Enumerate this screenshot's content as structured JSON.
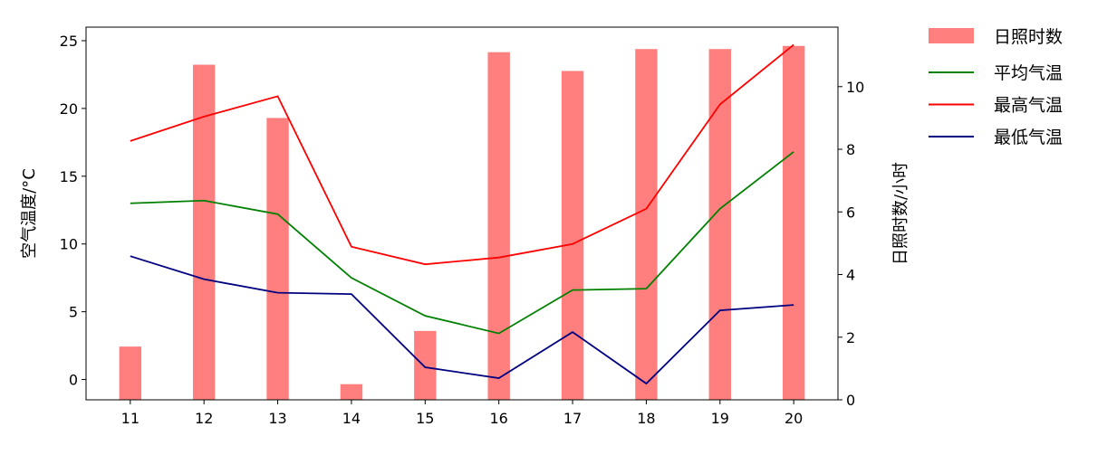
{
  "chart_data": {
    "type": "bar+line",
    "categories": [
      "11",
      "12",
      "13",
      "14",
      "15",
      "16",
      "17",
      "18",
      "19",
      "20"
    ],
    "x": [
      11,
      12,
      13,
      14,
      15,
      16,
      17,
      18,
      19,
      20
    ],
    "xlim": [
      10.4,
      20.6
    ],
    "ylabel": "空气温度/°C",
    "ylim": [
      -1.5,
      26
    ],
    "yticks": [
      0,
      5,
      10,
      15,
      20,
      25
    ],
    "y2label": "日照时数/小时",
    "y2lim": [
      0,
      11.9
    ],
    "y2ticks": [
      0,
      2,
      4,
      6,
      8,
      10
    ],
    "grid": false,
    "legend_placement": "outside-top-right",
    "bar_series": {
      "name": "日照时数",
      "axis": "right",
      "color": "#ff7f7f",
      "values": [
        1.7,
        10.7,
        9.0,
        0.5,
        2.2,
        11.1,
        10.5,
        11.2,
        11.2,
        11.3
      ]
    },
    "series": [
      {
        "name": "平均气温",
        "axis": "left",
        "color": "#008000",
        "values": [
          13.0,
          13.2,
          12.2,
          7.5,
          4.7,
          3.4,
          6.6,
          6.7,
          12.6,
          16.8
        ]
      },
      {
        "name": "最高气温",
        "axis": "left",
        "color": "#ff0000",
        "values": [
          17.6,
          19.4,
          20.9,
          9.8,
          8.5,
          9.0,
          10.0,
          12.6,
          20.3,
          24.7
        ]
      },
      {
        "name": "最低气温",
        "axis": "left",
        "color": "#000080",
        "values": [
          9.1,
          7.4,
          6.4,
          6.3,
          0.9,
          0.1,
          3.5,
          -0.3,
          5.1,
          5.5
        ]
      }
    ]
  }
}
